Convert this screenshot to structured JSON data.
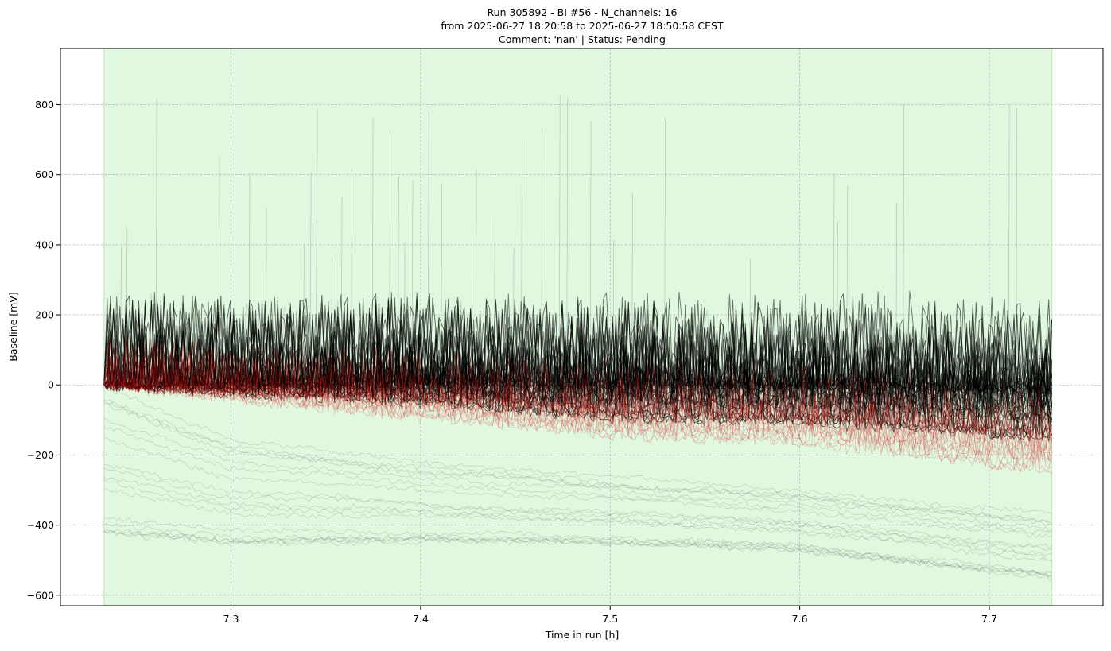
{
  "chart_data": {
    "type": "line",
    "title_lines": [
      "Run 305892  -  BI #56  -  N_channels: 16",
      "from  2025-06-27 18:20:58  to  2025-06-27 18:50:58 CEST",
      "Comment: 'nan' | Status: Pending"
    ],
    "xlabel": "Time in run [h]",
    "ylabel": "Baseline [mV]",
    "xlim": [
      7.21,
      7.76
    ],
    "ylim": [
      -630,
      960
    ],
    "xticks": [
      7.3,
      7.4,
      7.5,
      7.6,
      7.7
    ],
    "xtick_labels": [
      "7.3",
      "7.4",
      "7.5",
      "7.6",
      "7.7"
    ],
    "yticks": [
      -600,
      -400,
      -200,
      0,
      200,
      400,
      600,
      800
    ],
    "ytick_labels": [
      "−600",
      "−400",
      "−200",
      "0",
      "200",
      "400",
      "600",
      "800"
    ],
    "grid": true,
    "shaded_region": {
      "x0": 7.233,
      "x1": 7.733,
      "color": "#e0f8e0"
    },
    "x_range": [
      7.233,
      7.733
    ],
    "colors": {
      "nominal_traces": "#000000",
      "flagged_traces": "#d01010",
      "low_traces": "#556b55"
    },
    "series": [
      {
        "values_at": [
          7.233,
          7.3,
          7.4,
          7.5,
          7.6,
          7.733
        ],
        "y": [
          0,
          5,
          10,
          8,
          5,
          -5
        ]
      },
      {
        "values_at": [
          7.233,
          7.3,
          7.4,
          7.5,
          7.6,
          7.733
        ],
        "y": [
          0,
          -10,
          -20,
          -60,
          -70,
          -120
        ]
      },
      {
        "values_at": [
          7.233,
          7.3,
          7.4,
          7.5,
          7.6,
          7.733
        ],
        "y": [
          0,
          -25,
          -60,
          -110,
          -120,
          -180
        ]
      },
      {
        "values_at": [
          7.233,
          7.3,
          7.4,
          7.5,
          7.6,
          7.733
        ],
        "y": [
          0,
          -40,
          -100,
          -150,
          -170,
          -260
        ]
      },
      {
        "values_at": [
          7.233,
          7.3,
          7.4,
          7.5,
          7.6,
          7.733
        ],
        "y": [
          0,
          -150,
          -220,
          -260,
          -300,
          -370
        ]
      },
      {
        "values_at": [
          7.233,
          7.3,
          7.4,
          7.5,
          7.6,
          7.733
        ],
        "y": [
          -420,
          -450,
          -440,
          -450,
          -470,
          -550
        ]
      }
    ]
  }
}
